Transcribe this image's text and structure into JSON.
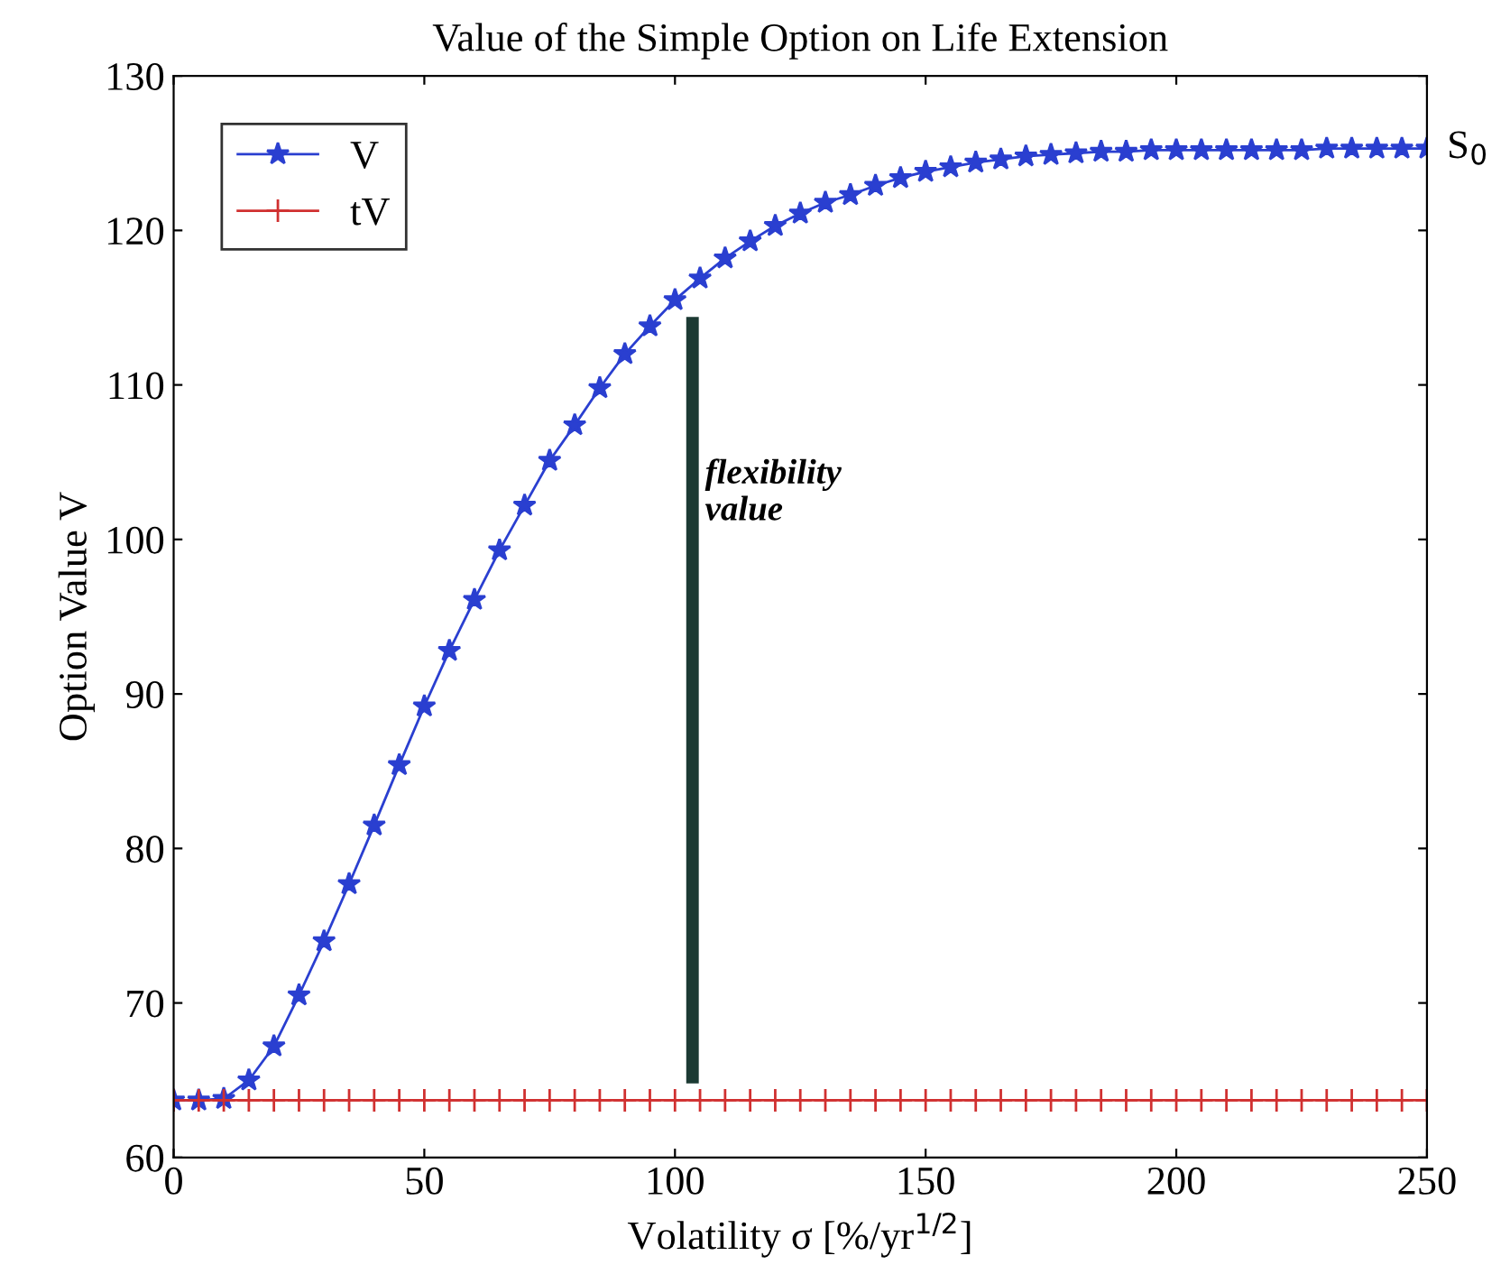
{
  "chart_data": {
    "type": "line",
    "title": "Value of the Simple Option on Life Extension",
    "xlabel": "Volatility σ [%/yr$^{1/2}$]",
    "ylabel": "Option Value V",
    "xlim": [
      0,
      250
    ],
    "ylim": [
      60,
      130
    ],
    "xticks": [
      0,
      50,
      100,
      150,
      200,
      250
    ],
    "yticks": [
      60,
      70,
      80,
      90,
      100,
      110,
      120,
      130
    ],
    "grid": false,
    "legend": "top left",
    "line_style": "solid",
    "x": [
      0,
      5,
      10,
      15,
      20,
      25,
      30,
      35,
      40,
      45,
      50,
      55,
      60,
      65,
      70,
      75,
      80,
      85,
      90,
      95,
      100,
      105,
      110,
      115,
      120,
      125,
      130,
      135,
      140,
      145,
      150,
      155,
      160,
      165,
      170,
      175,
      180,
      185,
      190,
      195,
      200,
      205,
      210,
      215,
      220,
      225,
      230,
      235,
      240,
      245,
      250
    ],
    "series": [
      {
        "name": "V",
        "color": "#2a3fd0",
        "marker": "star",
        "values": [
          63.7,
          63.7,
          63.8,
          65.0,
          67.2,
          70.5,
          74.0,
          77.7,
          81.5,
          85.4,
          89.2,
          92.8,
          96.1,
          99.3,
          102.2,
          105.1,
          107.4,
          109.8,
          112.0,
          113.8,
          115.5,
          116.9,
          118.2,
          119.3,
          120.3,
          121.1,
          121.8,
          122.3,
          122.9,
          123.4,
          123.8,
          124.1,
          124.4,
          124.6,
          124.8,
          124.9,
          125.0,
          125.1,
          125.1,
          125.2,
          125.2,
          125.2,
          125.2,
          125.2,
          125.2,
          125.2,
          125.3,
          125.3,
          125.3,
          125.3,
          125.3
        ]
      },
      {
        "name": "tV",
        "color": "#d03030",
        "marker": "cross",
        "values": [
          63.7,
          63.7,
          63.7,
          63.7,
          63.7,
          63.7,
          63.7,
          63.7,
          63.7,
          63.7,
          63.7,
          63.7,
          63.7,
          63.7,
          63.7,
          63.7,
          63.7,
          63.7,
          63.7,
          63.7,
          63.7,
          63.7,
          63.7,
          63.7,
          63.7,
          63.7,
          63.7,
          63.7,
          63.7,
          63.7,
          63.7,
          63.7,
          63.7,
          63.7,
          63.7,
          63.7,
          63.7,
          63.7,
          63.7,
          63.7,
          63.7,
          63.7,
          63.7,
          63.7,
          63.7,
          63.7,
          63.7,
          63.7,
          63.7,
          63.7,
          63.7
        ]
      },
      {
        "type": "line",
        "color": "#1c3a33",
        "marker": "none",
        "x": [
          103.5,
          103.5
        ],
        "values": [
          65.2,
          114.0
        ]
      }
    ],
    "annotations": [
      {
        "text": "flexibility\nvalue",
        "x": 106,
        "y": 103
      },
      {
        "text": "S$_{0}$",
        "x": 250,
        "y": 125.3
      }
    ]
  }
}
